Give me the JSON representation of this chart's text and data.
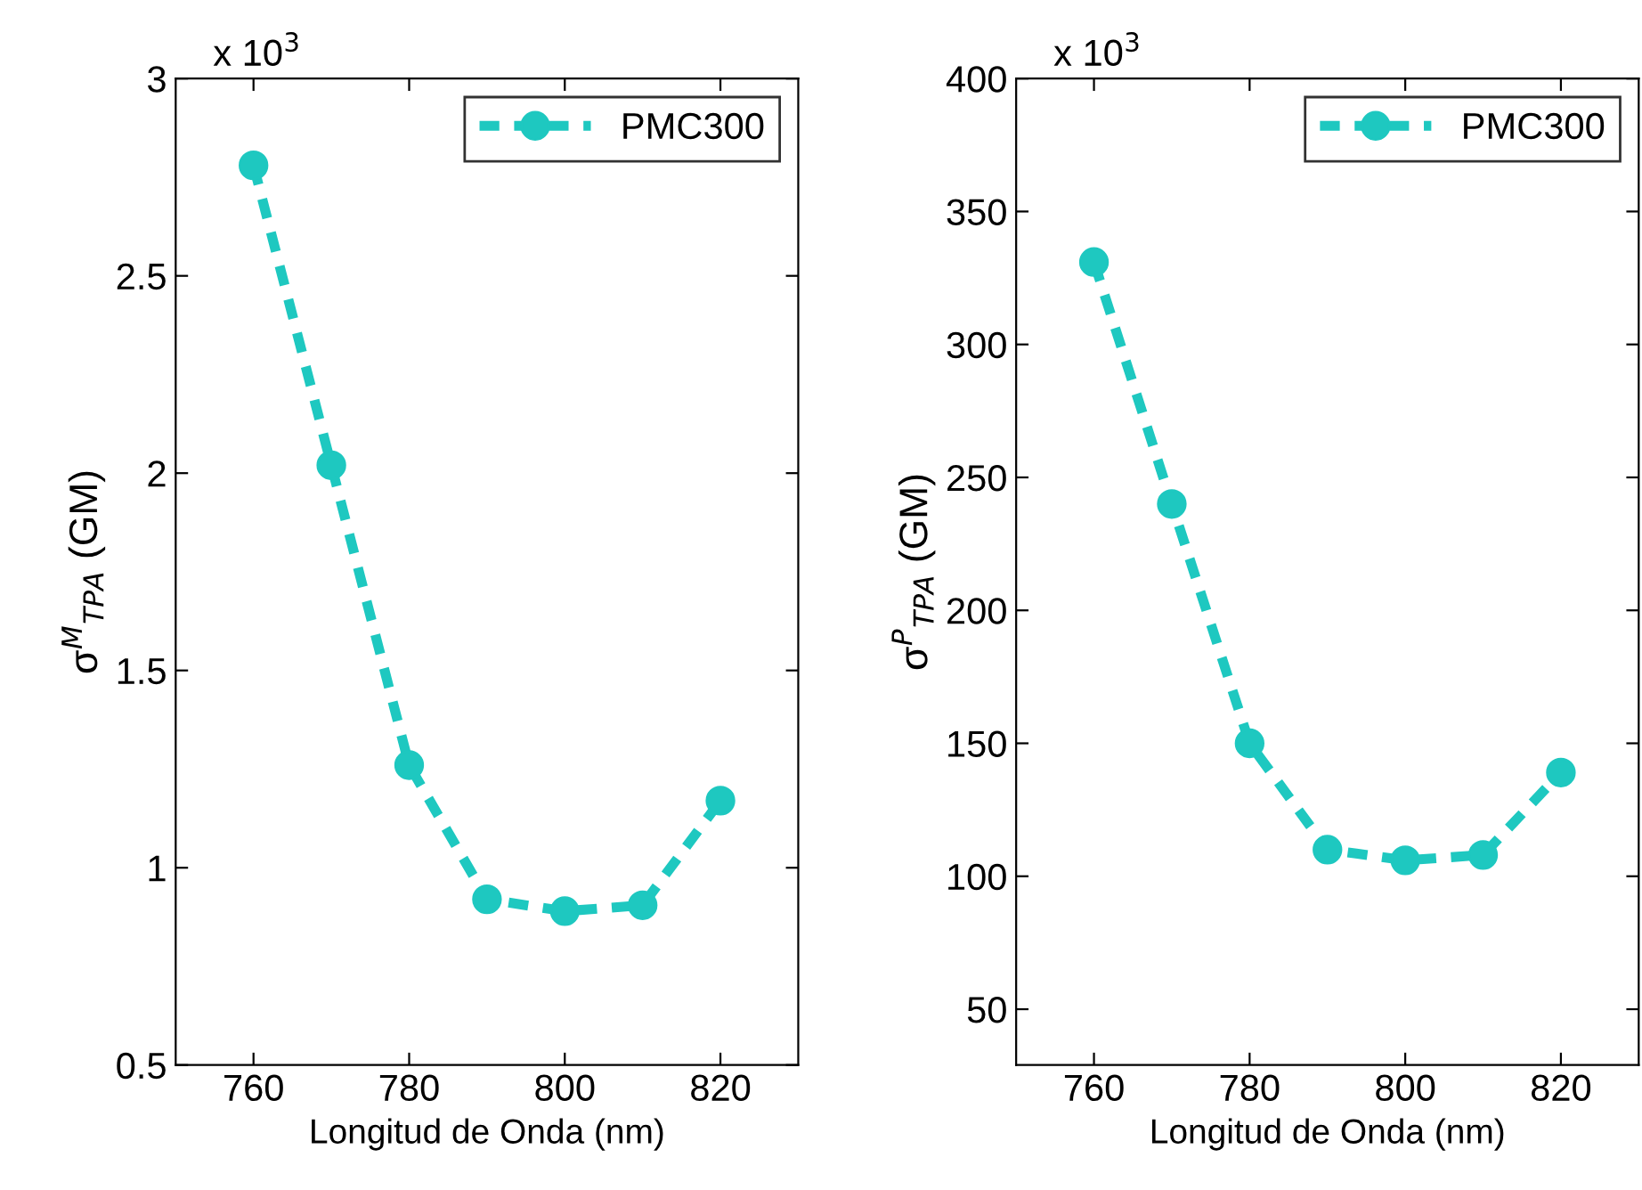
{
  "chart_data": [
    {
      "type": "line",
      "xlabel": "Longitud de Onda (nm)",
      "ylabel": "σ$^{M}$$_{TPA}$ (GM)",
      "annotations": [
        "x 10$^{3}$"
      ],
      "x": [
        760,
        770,
        780,
        790,
        800,
        810,
        820
      ],
      "series": [
        {
          "name": "PMC300",
          "color": "#1ec8c0",
          "values": [
            2.78,
            2.02,
            1.26,
            0.92,
            0.89,
            0.905,
            1.17
          ]
        }
      ],
      "xlim": [
        750,
        830
      ],
      "xticks": [
        760,
        780,
        800,
        820
      ],
      "ylim": [
        0.5,
        3
      ],
      "yticks": [
        0.5,
        1,
        1.5,
        2,
        2.5,
        3
      ],
      "grid": false,
      "legend": "top right",
      "marker": "circle",
      "line_style": "dashed"
    },
    {
      "type": "line",
      "xlabel": "Longitud de Onda (nm)",
      "ylabel": "σ$^{P}$$_{TPA}$ (GM)",
      "annotations": [
        "x 10$^{3}$"
      ],
      "x": [
        760,
        770,
        780,
        790,
        800,
        810,
        820
      ],
      "series": [
        {
          "name": "PMC300",
          "color": "#1ec8c0",
          "values": [
            331,
            240,
            150,
            110,
            106,
            108,
            139
          ]
        }
      ],
      "xlim": [
        750,
        830
      ],
      "xticks": [
        760,
        780,
        800,
        820
      ],
      "ylim": [
        29,
        400
      ],
      "yticks": [
        50,
        100,
        150,
        200,
        250,
        300,
        350,
        400
      ],
      "grid": false,
      "legend": "top right",
      "marker": "circle",
      "line_style": "dashed"
    }
  ]
}
